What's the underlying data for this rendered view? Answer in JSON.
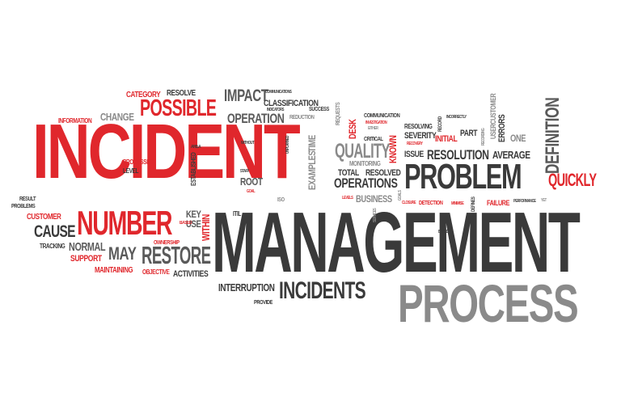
{
  "words": [
    {
      "text": "INCIDENT",
      "color": "#e0272c"
    },
    {
      "text": "MANAGEMENT",
      "color": "#3a3a3a"
    },
    {
      "text": "PROCESS",
      "color": "#8a8a8a"
    },
    {
      "text": "PROBLEM",
      "color": "#3a3a3a"
    },
    {
      "text": "NUMBER",
      "color": "#e0272c"
    },
    {
      "text": "INCIDENTS",
      "color": "#3a3a3a"
    },
    {
      "text": "POSSIBLE",
      "color": "#e0272c"
    },
    {
      "text": "RESTORE",
      "color": "#5a5a5a"
    },
    {
      "text": "QUICKLY",
      "color": "#e0272c"
    },
    {
      "text": "RESOLUTION",
      "color": "#3a3a3a"
    },
    {
      "text": "QUALITY",
      "color": "#8a8a8a"
    },
    {
      "text": "OPERATIONS",
      "color": "#3a3a3a"
    },
    {
      "text": "DEFINITION",
      "color": "#5a5a5a"
    },
    {
      "text": "IMPACT",
      "color": "#5a5a5a"
    },
    {
      "text": "OPERATION",
      "color": "#5a5a5a"
    },
    {
      "text": "CAUSE",
      "color": "#3a3a3a"
    },
    {
      "text": "MAY",
      "color": "#5a5a5a"
    },
    {
      "text": "NORMAL",
      "color": "#5a5a5a"
    },
    {
      "text": "INTERRUPTION",
      "color": "#3a3a3a"
    },
    {
      "text": "CLASSIFICATION",
      "color": "#3a3a3a"
    },
    {
      "text": "CHANGE",
      "color": "#8a8a8a"
    },
    {
      "text": "CATEGORY",
      "color": "#e0272c"
    },
    {
      "text": "RESOLVE",
      "color": "#3a3a3a"
    },
    {
      "text": "INFORMATION",
      "color": "#e0272c"
    },
    {
      "text": "PROCESSES",
      "color": "#e0272c"
    },
    {
      "text": "LEVEL",
      "color": "#3a3a3a"
    },
    {
      "text": "ESTABLISHED",
      "color": "#3a3a3a"
    },
    {
      "text": "AREA",
      "color": "#3a3a3a"
    },
    {
      "text": "WITHIN",
      "color": "#e0272c"
    },
    {
      "text": "KEY",
      "color": "#5a5a5a"
    },
    {
      "text": "USE",
      "color": "#5a5a5a"
    },
    {
      "text": "BASED",
      "color": "#e0272c"
    },
    {
      "text": "OWNERSHIP",
      "color": "#e0272c"
    },
    {
      "text": "MAINTAINING",
      "color": "#e0272c"
    },
    {
      "text": "OBJECTIVE",
      "color": "#e0272c"
    },
    {
      "text": "ACTIVITIES",
      "color": "#3a3a3a"
    },
    {
      "text": "SUPPORT",
      "color": "#e0272c"
    },
    {
      "text": "TRACKING",
      "color": "#3a3a3a"
    },
    {
      "text": "CUSTOMER",
      "color": "#e0272c"
    },
    {
      "text": "RESULT",
      "color": "#3a3a3a"
    },
    {
      "text": "PROBLEMS",
      "color": "#3a3a3a"
    },
    {
      "text": "PROVIDE",
      "color": "#3a3a3a"
    },
    {
      "text": "ITIL",
      "color": "#3a3a3a"
    },
    {
      "text": "ISO",
      "color": "#8a8a8a"
    },
    {
      "text": "ROOT",
      "color": "#5a5a5a"
    },
    {
      "text": "GOAL",
      "color": "#e0272c"
    },
    {
      "text": "STAFF",
      "color": "#3a3a3a"
    },
    {
      "text": "WITHOUT",
      "color": "#3a3a3a"
    },
    {
      "text": "UNPLANNED",
      "color": "#3a3a3a"
    },
    {
      "text": "EXAMPLES",
      "color": "#8a8a8a"
    },
    {
      "text": "TIME",
      "color": "#8a8a8a"
    },
    {
      "text": "INDICATORS",
      "color": "#3a3a3a"
    },
    {
      "text": "REDUCTION",
      "color": "#8a8a8a"
    },
    {
      "text": "COMMUNICATIONS",
      "color": "#3a3a3a"
    },
    {
      "text": "SUCCESS",
      "color": "#3a3a3a"
    },
    {
      "text": "REQUESTS",
      "color": "#8a8a8a"
    },
    {
      "text": "DESK",
      "color": "#e0272c"
    },
    {
      "text": "KNOWN",
      "color": "#e0272c"
    },
    {
      "text": "COMMUNICATION",
      "color": "#3a3a3a"
    },
    {
      "text": "INVESTIGATION",
      "color": "#e0272c"
    },
    {
      "text": "EITHER",
      "color": "#8a8a8a"
    },
    {
      "text": "CRITICAL",
      "color": "#3a3a3a"
    },
    {
      "text": "MONITORING",
      "color": "#8a8a8a"
    },
    {
      "text": "TOTAL",
      "color": "#3a3a3a"
    },
    {
      "text": "RESOLVED",
      "color": "#3a3a3a"
    },
    {
      "text": "BUSINESS",
      "color": "#8a8a8a"
    },
    {
      "text": "LEVELS",
      "color": "#e0272c"
    },
    {
      "text": "RESOLVING",
      "color": "#3a3a3a"
    },
    {
      "text": "SEVERITY",
      "color": "#3a3a3a"
    },
    {
      "text": "RECOVERY",
      "color": "#e0272c"
    },
    {
      "text": "ISSUE",
      "color": "#3a3a3a"
    },
    {
      "text": "RECORD",
      "color": "#3a3a3a"
    },
    {
      "text": "INCORRECTLY",
      "color": "#3a3a3a"
    },
    {
      "text": "PART",
      "color": "#3a3a3a"
    },
    {
      "text": "INITIAL",
      "color": "#e0272c"
    },
    {
      "text": "USERCUSTOMER",
      "color": "#8a8a8a"
    },
    {
      "text": "ERRORS",
      "color": "#3a3a3a"
    },
    {
      "text": "ONE",
      "color": "#8a8a8a"
    },
    {
      "text": "AVERAGE",
      "color": "#3a3a3a"
    },
    {
      "text": "RECORDING",
      "color": "#8a8a8a"
    },
    {
      "text": "DETECTION",
      "color": "#e0272c"
    },
    {
      "text": "CLOSURE",
      "color": "#e0272c"
    },
    {
      "text": "MINIMISE",
      "color": "#e0272c"
    },
    {
      "text": "DEFINES",
      "color": "#3a3a3a"
    },
    {
      "text": "FAILURE",
      "color": "#e0272c"
    },
    {
      "text": "PERFORMANCE",
      "color": "#3a3a3a"
    },
    {
      "text": "YET",
      "color": "#8a8a8a"
    },
    {
      "text": "GOALS",
      "color": "#8a8a8a"
    },
    {
      "text": "SERVICES",
      "color": "#8a8a8a"
    },
    {
      "text": "BASED",
      "color": "#3a3a3a"
    }
  ]
}
